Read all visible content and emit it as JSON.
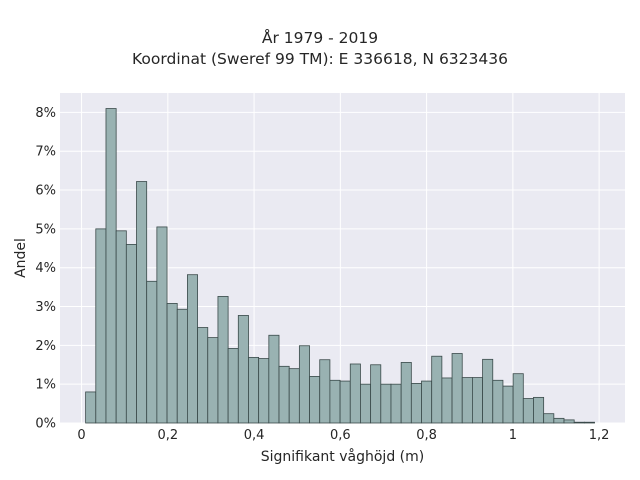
{
  "title_line1": "År 1979 - 2019",
  "title_line2": "Koordinat (Sweref 99 TM): E 336618, N 6323436",
  "chart_data": {
    "type": "bar",
    "title": "År 1979 - 2019",
    "subtitle": "Koordinat (Sweref 99 TM): E 336618, N 6323436",
    "xlabel": "Signifikant våghöjd (m)",
    "ylabel": "Andel",
    "xlim": [
      -0.05,
      1.26
    ],
    "ylim": [
      0,
      8.5
    ],
    "xticks": [
      0,
      0.2,
      0.4,
      0.6,
      0.8,
      1.0,
      1.2
    ],
    "xtick_labels": [
      "0",
      "0,2",
      "0,4",
      "0,6",
      "0,8",
      "1",
      "1,2"
    ],
    "yticks": [
      0,
      1,
      2,
      3,
      4,
      5,
      6,
      7,
      8
    ],
    "ytick_labels": [
      "0%",
      "1%",
      "2%",
      "3%",
      "4%",
      "5%",
      "6%",
      "7%",
      "8%"
    ],
    "grid": true,
    "bin_width": 0.0236,
    "bin_start": 0.0094,
    "values": [
      0.8,
      5.0,
      8.1,
      4.95,
      4.6,
      6.22,
      3.65,
      5.05,
      3.08,
      2.93,
      3.82,
      2.46,
      2.2,
      3.26,
      1.92,
      2.77,
      1.69,
      1.66,
      2.26,
      1.46,
      1.4,
      1.99,
      1.2,
      1.63,
      1.1,
      1.08,
      1.52,
      1.0,
      1.5,
      1.0,
      1.0,
      1.56,
      1.02,
      1.08,
      1.72,
      1.16,
      1.79,
      1.17,
      1.17,
      1.64,
      1.1,
      0.95,
      1.27,
      0.63,
      0.66,
      0.24,
      0.12,
      0.08,
      0.02,
      0.02
    ],
    "colors": {
      "background": "#eaeaf2",
      "bar_fill": "#99b2b2",
      "bar_edge": "#3a4a4a",
      "grid": "#ffffff"
    }
  }
}
